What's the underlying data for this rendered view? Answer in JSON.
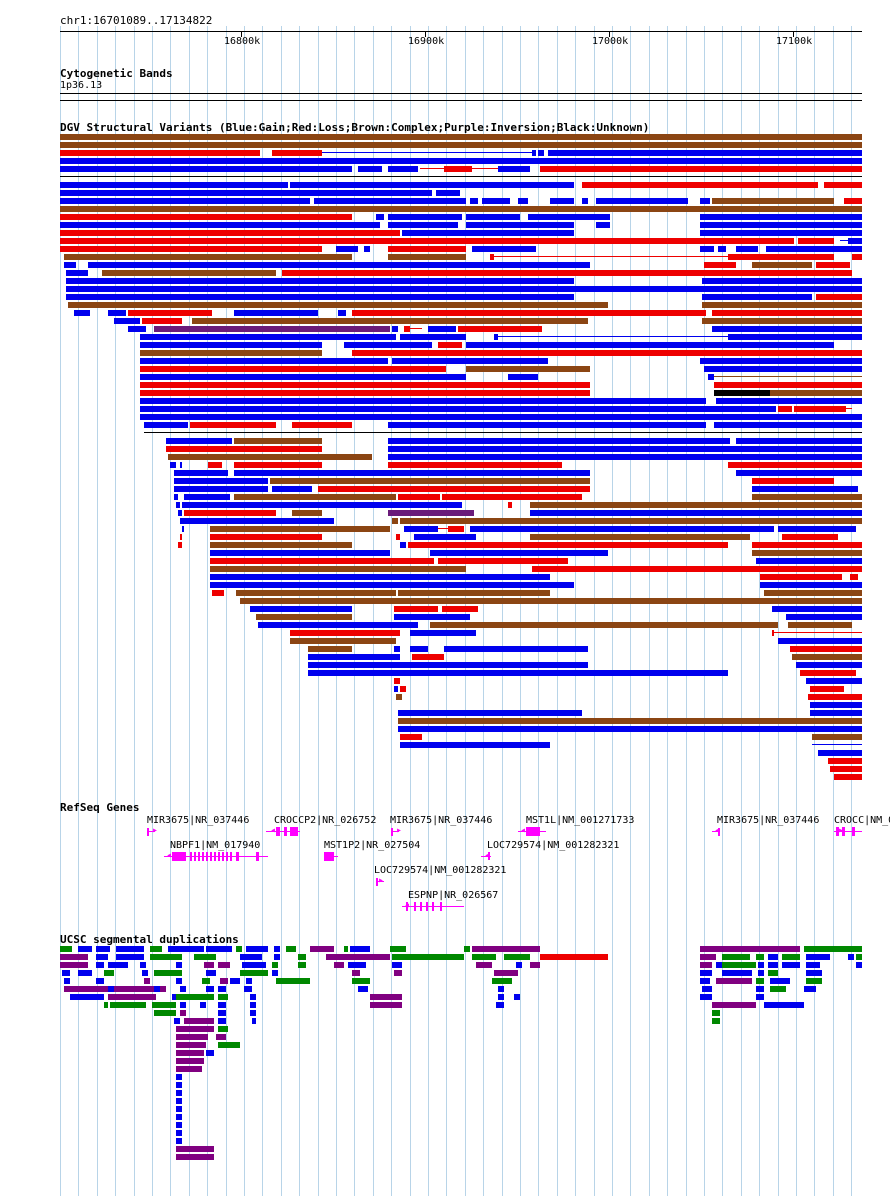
{
  "ruler": {
    "location": "chr1:16701089..17134822",
    "ticks": [
      "16800k",
      "16900k",
      "17000k",
      "17100k"
    ]
  },
  "tracks": {
    "cytobands": {
      "title": "Cytogenetic Bands",
      "band": "1p36.13"
    },
    "dgv": {
      "title": "DGV Structural Variants (Blue:Gain;Red:Loss;Brown:Complex;Purple:Inversion;Black:Unknown)"
    },
    "refseq": {
      "title": "RefSeq Genes",
      "genes": [
        "MIR3675|NR_037446",
        "CROCCP2|NR_026752",
        "MIR3675|NR_037446",
        "MST1L|NM_001271733",
        "MIR3675|NR_037446",
        "CROCC|NM_0",
        "NBPF1|NM_017940",
        "MST1P2|NR_027504",
        "LOC729574|NM_001282321",
        "LOC729574|NM_001282321",
        "ESPNP|NR_026567"
      ]
    },
    "segdups": {
      "title": "UCSC segmental duplications"
    }
  },
  "colors": {
    "gain": "#0000ee",
    "loss": "#ee0000",
    "complex": "#8b4513",
    "inversion": "#6a1b7a",
    "unknown": "#000000",
    "gene": "#ff00ff",
    "segdup_green": "#008800",
    "segdup_purple": "#800080",
    "grid": "#b8d4e8"
  }
}
